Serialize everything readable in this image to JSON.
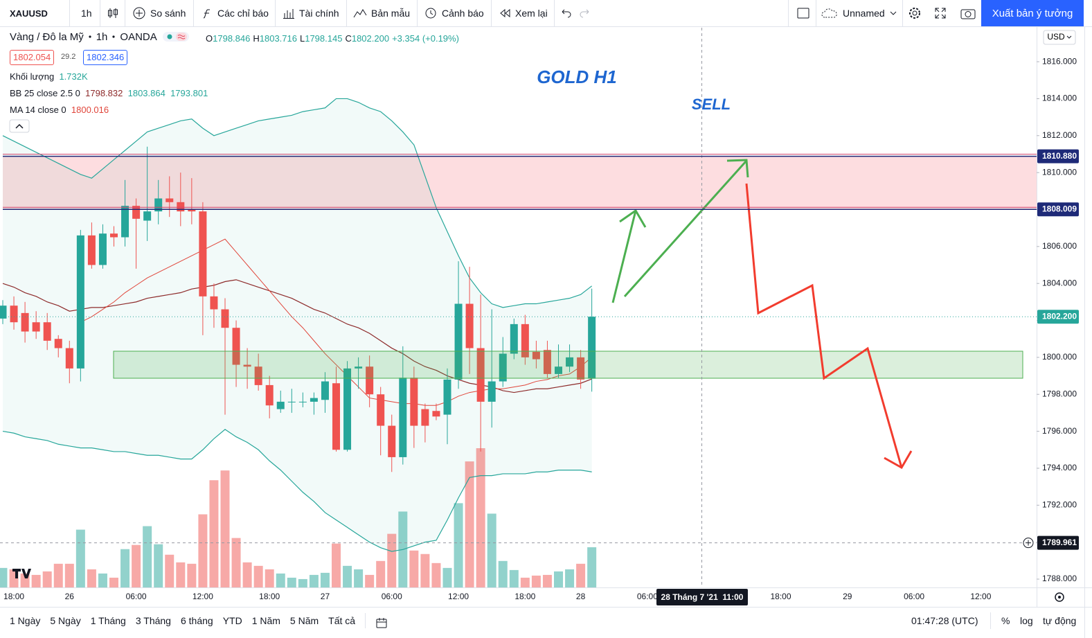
{
  "toolbar": {
    "symbol": "XAUUSD",
    "interval": "1h",
    "compare": "So sánh",
    "indicators": "Các chỉ báo",
    "financials": "Tài chính",
    "templates": "Bản mẫu",
    "alert": "Cảnh báo",
    "replay": "Xem lại",
    "layout": "Unnamed",
    "publish": "Xuất bản ý tưởng"
  },
  "legend": {
    "symbol_line": [
      "Vàng / Đô la Mỹ",
      "1h",
      "OANDA"
    ],
    "bid": "1802.054",
    "spread": "29.2",
    "ask": "1802.346",
    "ohlc_prefixes": [
      "O",
      "H",
      "L",
      "C"
    ],
    "change": "+3.354 (+0.19%)"
  },
  "annotations": {
    "title": "GOLD H1",
    "signal": "SELL"
  },
  "currency": "USD",
  "bottom_bar": {
    "ranges": [
      "1 Ngày",
      "5 Ngày",
      "1 Tháng",
      "3 Tháng",
      "6 tháng",
      "YTD",
      "1 Năm",
      "5 Năm",
      "Tất cả"
    ],
    "time": "01:47:28 (UTC)",
    "percent": "%",
    "log": "log",
    "auto": "tự động"
  },
  "chart_data": {
    "type": "candlestick",
    "categories": [
      null,
      "18:00",
      null,
      null,
      null,
      null,
      "26",
      null,
      null,
      null,
      null,
      null,
      "06:00",
      null,
      null,
      null,
      null,
      null,
      "12:00",
      null,
      null,
      null,
      null,
      null,
      "18:00",
      null,
      null,
      null,
      null,
      "27",
      null,
      null,
      null,
      null,
      null,
      "06:00",
      null,
      null,
      null,
      null,
      null,
      "12:00",
      null,
      null,
      null,
      null,
      null,
      "18:00",
      null,
      null,
      null,
      null,
      "28",
      null
    ],
    "future_categories": [
      null,
      null,
      null,
      null,
      "06:00",
      null,
      null,
      null,
      null,
      null,
      null,
      null,
      null,
      null,
      null,
      null,
      "18:00",
      null,
      null,
      null,
      null,
      null,
      "29",
      null,
      null,
      null,
      null,
      null,
      "06:00",
      null,
      null,
      null,
      null,
      null,
      "12:00"
    ],
    "crosshair_time": "28 Tháng 7 '21  11:00",
    "up_color": "#26a69a",
    "down_color": "#ef5350",
    "open": [
      1802.1,
      1802.8,
      1802.4,
      1801.9,
      1801.9,
      1801.0,
      1800.5,
      1799.4,
      1806.6,
      1805.0,
      1806.7,
      1806.5,
      1808.2,
      1807.4,
      1807.9,
      1808.6,
      1808.4,
      1808.0,
      1807.9,
      1803.3,
      1802.6,
      1801.6,
      1799.6,
      1799.5,
      1798.5,
      1797.2,
      1797.6,
      1797.6,
      1797.6,
      1797.7,
      1798.6,
      1795.0,
      1799.4,
      1799.5,
      1798.0,
      1796.3,
      1794.6,
      1798.9,
      1797.2,
      1797.1,
      1796.9,
      1798.8,
      1802.9,
      1800.5,
      1797.6,
      1798.7,
      1800.2,
      1801.8,
      1800.3,
      1800.4,
      1799.1,
      1799.5,
      1800.0,
      1798.846
    ],
    "high": [
      1803.1,
      1803.3,
      1803.0,
      1802.5,
      1802.4,
      1801.2,
      1800.9,
      1806.9,
      1807.3,
      1807.2,
      1807.1,
      1809.6,
      1808.6,
      1811.4,
      1809.6,
      1809.8,
      1810.0,
      1809.7,
      1808.4,
      1804.0,
      1803.2,
      1802.0,
      1800.5,
      1800.2,
      1799.0,
      1798.2,
      1798.3,
      1798.1,
      1798.1,
      1799.2,
      1799.5,
      1799.8,
      1800.0,
      1800.1,
      1798.4,
      1796.9,
      1800.6,
      1799.5,
      1797.5,
      1797.5,
      1799.4,
      1805.2,
      1804.9,
      1803.4,
      1802.6,
      1801.1,
      1802.1,
      1802.3,
      1800.9,
      1800.9,
      1800.7,
      1800.7,
      1800.4,
      1803.716
    ],
    "low": [
      1801.8,
      1801.5,
      1800.8,
      1801.0,
      1800.4,
      1800.0,
      1798.6,
      1798.7,
      1804.8,
      1804.8,
      1806.0,
      1806.0,
      1804.8,
      1806.3,
      1807.2,
      1807.6,
      1807.1,
      1807.2,
      1801.2,
      1801.6,
      1796.9,
      1798.4,
      1798.3,
      1798.2,
      1796.7,
      1797.0,
      1797.0,
      1797.3,
      1796.9,
      1797.0,
      1794.9,
      1794.9,
      1798.3,
      1797.3,
      1794.7,
      1793.8,
      1794.2,
      1795.1,
      1795.4,
      1796.6,
      1795.3,
      1798.3,
      1799.1,
      1794.9,
      1796.2,
      1798.4,
      1799.9,
      1799.6,
      1799.4,
      1798.9,
      1798.9,
      1799.2,
      1798.3,
      1798.145
    ],
    "close": [
      1802.8,
      1801.9,
      1801.4,
      1801.4,
      1800.9,
      1800.5,
      1799.4,
      1806.6,
      1805.0,
      1806.7,
      1806.5,
      1808.2,
      1807.5,
      1807.9,
      1808.6,
      1808.4,
      1807.9,
      1807.9,
      1803.3,
      1802.6,
      1801.6,
      1799.6,
      1799.5,
      1798.5,
      1797.4,
      1797.6,
      1797.6,
      1797.6,
      1797.8,
      1798.7,
      1795.0,
      1799.4,
      1799.5,
      1798.0,
      1796.3,
      1794.6,
      1798.9,
      1796.3,
      1796.3,
      1796.8,
      1798.8,
      1802.9,
      1800.5,
      1797.6,
      1798.7,
      1800.2,
      1801.8,
      1800.0,
      1799.9,
      1799.1,
      1799.5,
      1800.0,
      1798.8,
      1802.2
    ],
    "last_candle_labels": {
      "open": "1798.846",
      "high": "1803.716",
      "low": "1798.145",
      "close": "1802.200"
    },
    "volume": {
      "name": "Khối lượng",
      "last_label": "1.732K",
      "up_color": "rgba(38,166,154,0.5)",
      "down_color": "rgba(239,83,80,0.5)",
      "values": [
        840,
        780,
        600,
        540,
        690,
        1020,
        1020,
        2490,
        780,
        600,
        420,
        1650,
        1830,
        2640,
        1860,
        1410,
        1080,
        1020,
        3150,
        4620,
        5040,
        2130,
        1080,
        930,
        780,
        600,
        420,
        360,
        540,
        630,
        1890,
        930,
        780,
        540,
        1140,
        2310,
        3270,
        1590,
        1440,
        1050,
        840,
        3630,
        5430,
        6000,
        3180,
        1140,
        750,
        420,
        510,
        540,
        690,
        780,
        1020,
        1732
      ]
    },
    "bollinger": {
      "name": "BB 25 close 2.5 0",
      "band_color": "#26a69a",
      "fill": "rgba(38,166,154,0.06)",
      "basis": {
        "color": "#8d2a2a",
        "last_label": "1798.832",
        "values": [
          1804.0,
          1803.8,
          1803.5,
          1803.3,
          1803.0,
          1802.8,
          1802.5,
          1802.6,
          1802.7,
          1802.7,
          1802.8,
          1802.9,
          1803.0,
          1803.2,
          1803.3,
          1803.4,
          1803.5,
          1803.7,
          1803.8,
          1803.9,
          1804.1,
          1804.2,
          1804.0,
          1803.8,
          1803.6,
          1803.4,
          1803.2,
          1802.9,
          1802.6,
          1802.4,
          1802.1,
          1801.8,
          1801.6,
          1801.3,
          1800.9,
          1800.5,
          1800.2,
          1799.8,
          1799.5,
          1799.3,
          1799.0,
          1798.8,
          1798.6,
          1798.5,
          1798.4,
          1798.2,
          1798.1,
          1798.2,
          1798.3,
          1798.3,
          1798.4,
          1798.5,
          1798.6,
          1798.832
        ]
      },
      "upper": {
        "last_label": "1803.864",
        "values": [
          1812.0,
          1811.7,
          1811.4,
          1811.1,
          1810.8,
          1810.5,
          1810.2,
          1809.9,
          1809.7,
          1810.2,
          1810.7,
          1811.2,
          1811.7,
          1812.2,
          1812.4,
          1812.6,
          1812.8,
          1812.9,
          1812.4,
          1812.0,
          1812.2,
          1812.4,
          1812.6,
          1812.8,
          1812.9,
          1813.0,
          1813.1,
          1813.3,
          1813.4,
          1813.5,
          1814.0,
          1814.0,
          1813.8,
          1813.5,
          1813.3,
          1812.8,
          1812.2,
          1811.5,
          1809.8,
          1808.1,
          1806.8,
          1805.5,
          1804.3,
          1803.5,
          1802.9,
          1802.7,
          1802.8,
          1802.9,
          1802.9,
          1803.0,
          1803.1,
          1803.2,
          1803.4,
          1803.864
        ]
      },
      "lower": {
        "last_label": "1793.801",
        "values": [
          1796.0,
          1795.9,
          1795.7,
          1795.6,
          1795.5,
          1795.3,
          1795.2,
          1795.1,
          1795.1,
          1795.0,
          1794.9,
          1794.9,
          1794.8,
          1794.7,
          1794.7,
          1794.6,
          1794.5,
          1794.5,
          1795.0,
          1795.6,
          1796.1,
          1795.7,
          1795.4,
          1795.0,
          1794.4,
          1793.9,
          1793.3,
          1792.7,
          1792.2,
          1791.6,
          1791.2,
          1790.8,
          1790.4,
          1790.0,
          1789.7,
          1789.5,
          1789.6,
          1789.8,
          1790.0,
          1790.1,
          1791.2,
          1792.4,
          1793.5,
          1793.6,
          1793.6,
          1793.7,
          1793.7,
          1793.7,
          1793.8,
          1793.8,
          1793.9,
          1793.9,
          1793.9,
          1793.801
        ]
      }
    },
    "ma": {
      "name": "MA 14 close 0",
      "color": "#e0453a",
      "last_label": "1800.016",
      "values": [
        null,
        null,
        null,
        null,
        null,
        null,
        null,
        1801.9,
        1802.2,
        1802.6,
        1803.0,
        1803.5,
        1803.9,
        1804.3,
        1804.6,
        1804.9,
        1805.2,
        1805.5,
        1805.8,
        1806.1,
        1806.4,
        1805.7,
        1805.0,
        1804.3,
        1803.6,
        1802.9,
        1802.2,
        1801.6,
        1800.9,
        1800.2,
        1799.6,
        1799.0,
        1798.4,
        1797.8,
        1797.7,
        1797.6,
        1797.5,
        1797.5,
        1797.4,
        1797.4,
        1797.6,
        1797.9,
        1798.1,
        1798.2,
        1798.3,
        1798.3,
        1798.4,
        1798.5,
        1798.7,
        1798.8,
        1799.0,
        1799.1,
        1799.5,
        1800.016
      ]
    },
    "ylim": [
      1787.55,
      1817.84
    ],
    "yticks": [
      {
        "value": 1788,
        "label": "1788.000"
      },
      {
        "value": 1790,
        "label": "1790.000"
      },
      {
        "value": 1792,
        "label": "1792.000"
      },
      {
        "value": 1794,
        "label": "1794.000"
      },
      {
        "value": 1796,
        "label": "1796.000"
      },
      {
        "value": 1798,
        "label": "1798.000"
      },
      {
        "value": 1800,
        "label": "1800.000"
      },
      {
        "value": 1802,
        "label": "1802.000"
      },
      {
        "value": 1804,
        "label": "1804.000"
      },
      {
        "value": 1806,
        "label": "1806.000"
      },
      {
        "value": 1808,
        "label": "1808.000"
      },
      {
        "value": 1810,
        "label": "1810.000"
      },
      {
        "value": 1812,
        "label": "1812.000"
      },
      {
        "value": 1814,
        "label": "1814.000"
      },
      {
        "value": 1816,
        "label": "1816.000"
      }
    ],
    "zone": {
      "from": 1808.009,
      "to": 1810.88,
      "color": "rgba(242,54,69,0.17)"
    },
    "price_lines": [
      {
        "value": 1810.88,
        "label": "1810.880",
        "color": "#1e2a78",
        "style": "solid"
      },
      {
        "value": 1808.009,
        "label": "1808.009",
        "color": "#1e2a78",
        "style": "solid"
      },
      {
        "value": 1802.2,
        "label": "1802.200",
        "color": "#26a69a",
        "style": "dotted"
      },
      {
        "value": 1789.961,
        "label": "1789.961",
        "color": "#131722",
        "style": "dashed"
      }
    ],
    "grid": false
  }
}
